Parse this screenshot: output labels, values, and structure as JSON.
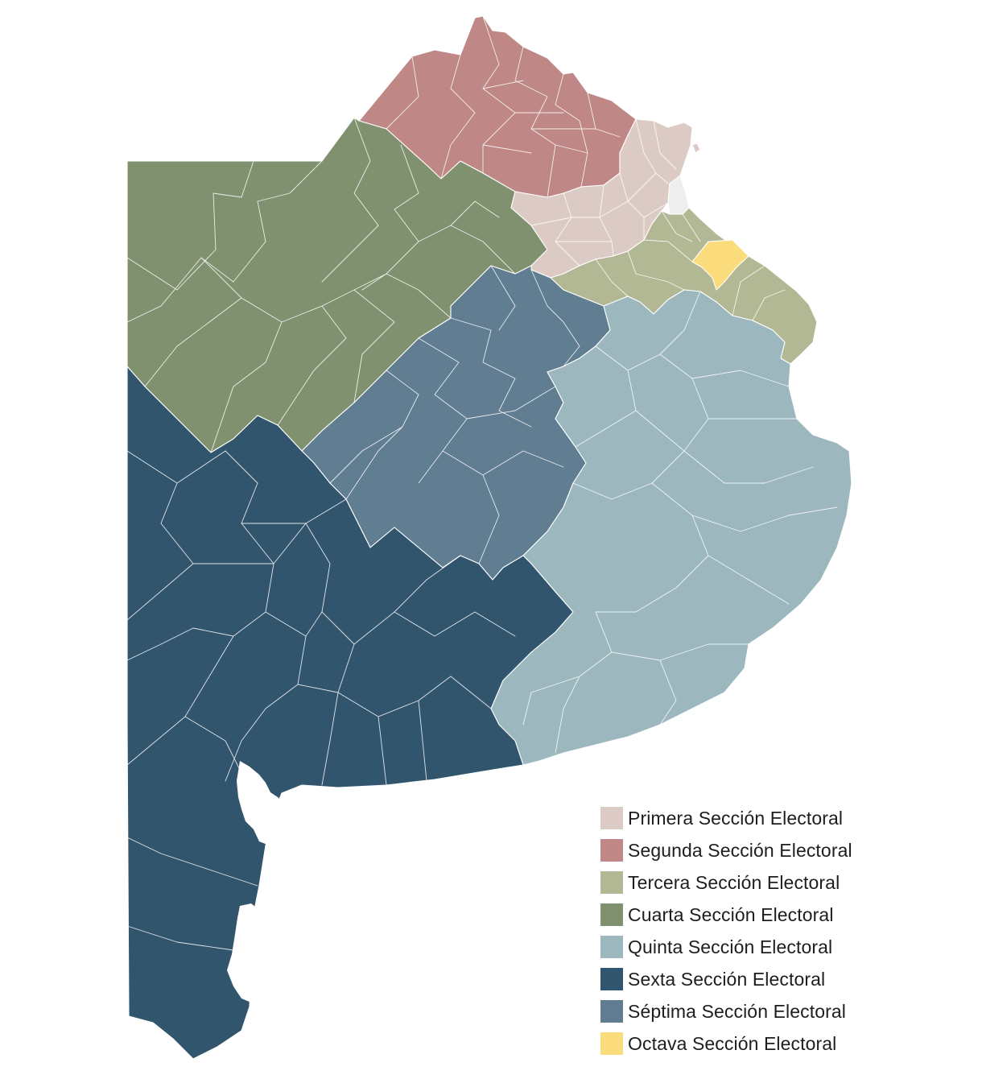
{
  "map": {
    "regions": [
      {
        "key": "primera",
        "color": "#dccbc4"
      },
      {
        "key": "segunda",
        "color": "#bf8785"
      },
      {
        "key": "tercera",
        "color": "#b2b794"
      },
      {
        "key": "cuarta",
        "color": "#809170"
      },
      {
        "key": "quinta",
        "color": "#9cb7bd"
      },
      {
        "key": "sexta",
        "color": "#32556e"
      },
      {
        "key": "septima",
        "color": "#617d92"
      },
      {
        "key": "octava",
        "color": "#fbdc7c"
      },
      {
        "key": "capital",
        "color": "#eeeeee"
      }
    ]
  },
  "legend": {
    "items": [
      {
        "label": "Primera Sección Electoral",
        "color": "#dccbc4"
      },
      {
        "label": "Segunda Sección Electoral",
        "color": "#bf8785"
      },
      {
        "label": "Tercera Sección Electoral",
        "color": "#b2b794"
      },
      {
        "label": "Cuarta Sección Electoral",
        "color": "#809170"
      },
      {
        "label": "Quinta Sección Electoral",
        "color": "#9cb7bd"
      },
      {
        "label": "Sexta Sección Electoral",
        "color": "#32556e"
      },
      {
        "label": "Séptima Sección Electoral",
        "color": "#617d92"
      },
      {
        "label": "Octava Sección Electoral",
        "color": "#fbdc7c"
      }
    ]
  }
}
